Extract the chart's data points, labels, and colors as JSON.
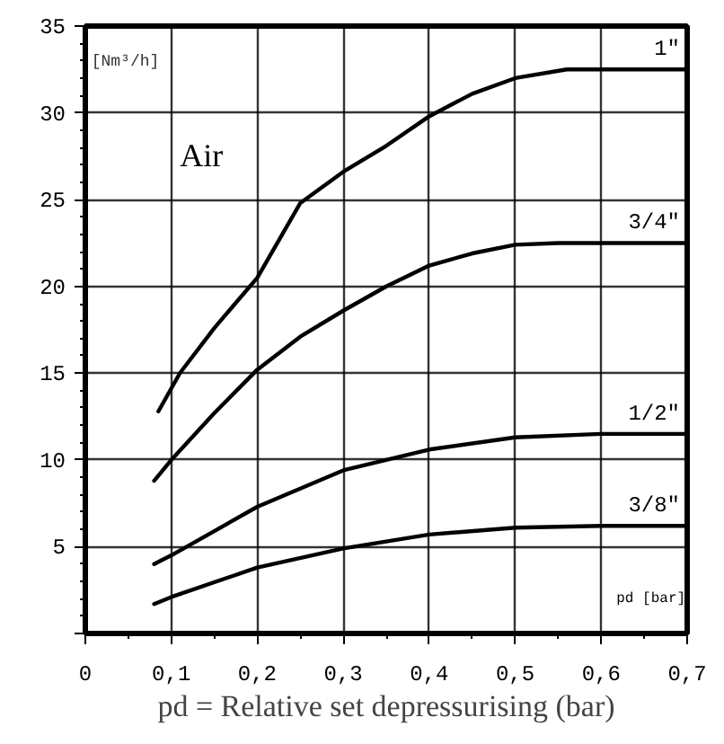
{
  "chart_data": {
    "type": "line",
    "xlabel": "pd = Relative set depressurising (bar)",
    "ylabel": "[Nm³/h]",
    "annotations": [
      "Air",
      "pd [bar]"
    ],
    "xlim": [
      0,
      0.7
    ],
    "ylim": [
      0,
      35
    ],
    "xticks": [
      0,
      {
        "value": 0.1,
        "label": "0,1"
      },
      {
        "value": 0.2,
        "label": "0,2"
      },
      {
        "value": 0.3,
        "label": "0,3"
      },
      {
        "value": 0.4,
        "label": "0,4"
      },
      {
        "value": 0.5,
        "label": "0,5"
      },
      {
        "value": 0.6,
        "label": "0,6"
      },
      {
        "value": 0.7,
        "label": "0,7"
      }
    ],
    "yticks": [
      {
        "value": 0,
        "label": null
      },
      5,
      10,
      15,
      20,
      25,
      30,
      35
    ],
    "grid": true,
    "marker": "none",
    "line_style": "solid",
    "series": [
      {
        "name": "1\"",
        "color": "#000000",
        "x": [
          0.085,
          0.11,
          0.15,
          0.2,
          0.25,
          0.3,
          0.35,
          0.4,
          0.45,
          0.5,
          0.56,
          0.7
        ],
        "values": [
          12.8,
          15,
          17.6,
          20.5,
          24.8,
          26.6,
          28.1,
          29.8,
          31.1,
          32,
          32.5,
          32.5
        ]
      },
      {
        "name": "3/4\"",
        "color": "#000000",
        "x": [
          0.08,
          0.1,
          0.15,
          0.2,
          0.25,
          0.3,
          0.35,
          0.4,
          0.45,
          0.5,
          0.55,
          0.7
        ],
        "values": [
          8.8,
          10,
          12.7,
          15.2,
          17.1,
          18.6,
          20,
          21.2,
          21.9,
          22.4,
          22.5,
          22.5
        ]
      },
      {
        "name": "1/2\"",
        "color": "#000000",
        "x": [
          0.08,
          0.1,
          0.2,
          0.3,
          0.4,
          0.5,
          0.6,
          0.7
        ],
        "values": [
          4.0,
          4.5,
          7.3,
          9.4,
          10.6,
          11.3,
          11.5,
          11.5
        ]
      },
      {
        "name": "3/8\"",
        "color": "#000000",
        "x": [
          0.08,
          0.1,
          0.2,
          0.3,
          0.4,
          0.5,
          0.6,
          0.7
        ],
        "values": [
          1.7,
          2.1,
          3.8,
          4.9,
          5.7,
          6.1,
          6.2,
          6.2
        ]
      }
    ]
  }
}
